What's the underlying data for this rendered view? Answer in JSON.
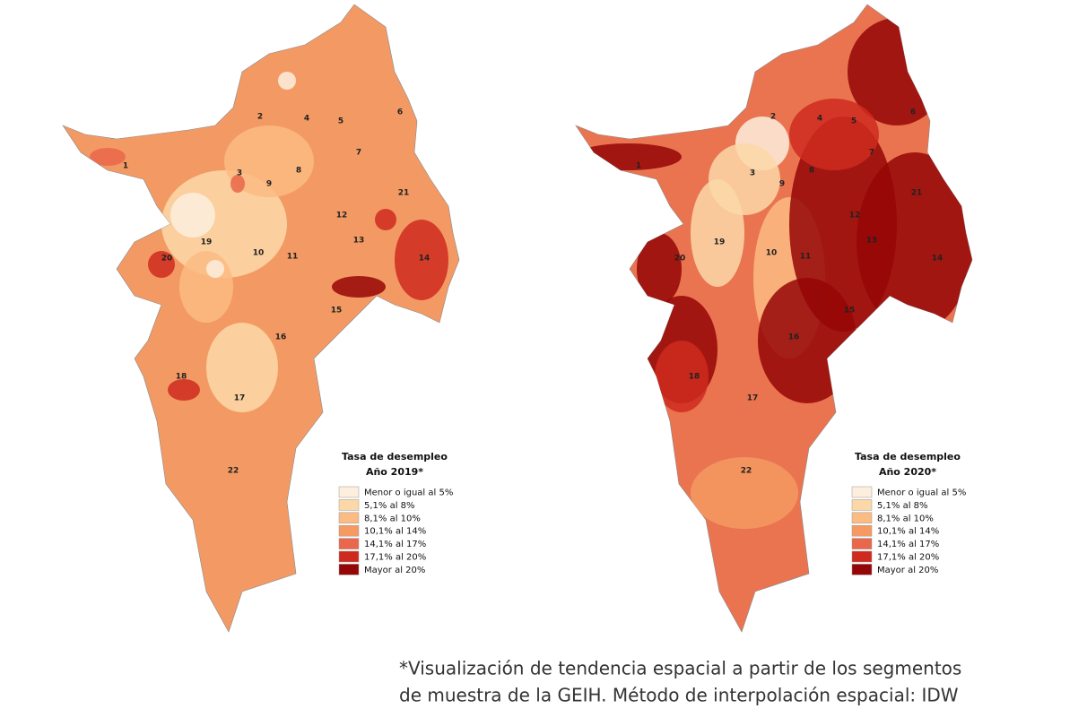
{
  "maps": [
    {
      "legend": {
        "title": "Tasa de desempleo",
        "year": "Año 2019*",
        "items": [
          {
            "label": "Menor o igual al 5%",
            "color": "#fdeedd"
          },
          {
            "label": "5,1% al 8%",
            "color": "#fcd8a8"
          },
          {
            "label": "8,1% al 10%",
            "color": "#fbbb82"
          },
          {
            "label": "10,1% al 14%",
            "color": "#f59a62"
          },
          {
            "label": "14,1% al 17%",
            "color": "#e9674a"
          },
          {
            "label": "17,1% al 20%",
            "color": "#cf2a1e"
          },
          {
            "label": "Mayor al 20%",
            "color": "#950606"
          }
        ]
      },
      "districts": [
        "1",
        "2",
        "3",
        "4",
        "5",
        "6",
        "7",
        "8",
        "9",
        "10",
        "11",
        "12",
        "13",
        "14",
        "15",
        "16",
        "17",
        "18",
        "19",
        "20",
        "21",
        "22"
      ]
    },
    {
      "legend": {
        "title": "Tasa de desempleo",
        "year": "Año 2020*",
        "items": [
          {
            "label": "Menor o igual al 5%",
            "color": "#fdeedd"
          },
          {
            "label": "5,1% al 8%",
            "color": "#fcd8a8"
          },
          {
            "label": "8,1% al 10%",
            "color": "#fbbb82"
          },
          {
            "label": "10,1% al 14%",
            "color": "#f59a62"
          },
          {
            "label": "14,1% al 17%",
            "color": "#e9674a"
          },
          {
            "label": "17,1% al 20%",
            "color": "#cf2a1e"
          },
          {
            "label": "Mayor al 20%",
            "color": "#950606"
          }
        ]
      },
      "districts": [
        "1",
        "2",
        "3",
        "4",
        "5",
        "6",
        "7",
        "8",
        "9",
        "10",
        "11",
        "12",
        "13",
        "14",
        "15",
        "16",
        "17",
        "18",
        "19",
        "20",
        "21",
        "22"
      ]
    }
  ],
  "footnote": [
    "*Visualización de tendencia espacial a partir de los segmentos",
    "de muestra de la GEIH. Método de interpolación espacial: IDW"
  ]
}
